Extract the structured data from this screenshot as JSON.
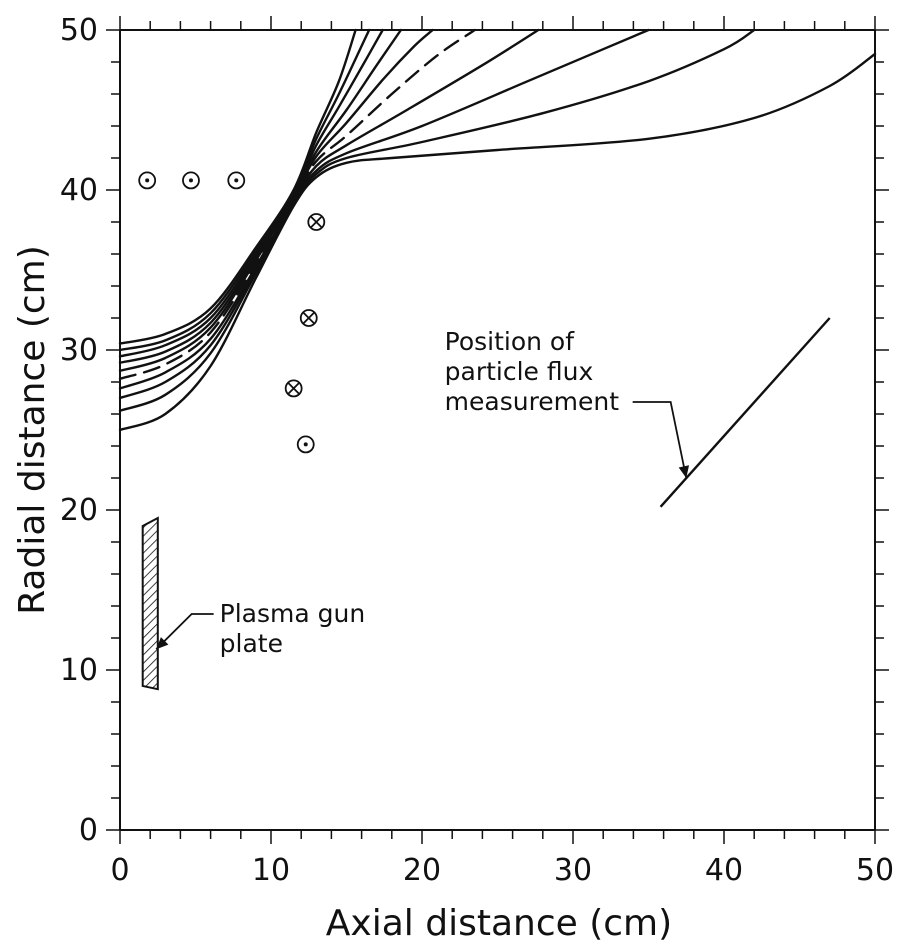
{
  "chart_data": {
    "type": "line",
    "xlabel": "Axial distance (cm)",
    "ylabel": "Radial distance (cm)",
    "xlim": [
      0,
      50
    ],
    "ylim": [
      0,
      50
    ],
    "xticks": [
      0,
      10,
      20,
      30,
      40,
      50
    ],
    "yticks": [
      0,
      10,
      20,
      30,
      40,
      50
    ],
    "grid": false,
    "line_color": "#111111",
    "series": [
      {
        "style": "solid",
        "points": [
          [
            0,
            25.0
          ],
          [
            3,
            26.0
          ],
          [
            6,
            29.0
          ],
          [
            9,
            34.5
          ],
          [
            11.5,
            39.0
          ],
          [
            13,
            40.8
          ],
          [
            15,
            41.7
          ],
          [
            18,
            42.0
          ],
          [
            25,
            42.5
          ],
          [
            35,
            43.2
          ],
          [
            42,
            44.5
          ],
          [
            47,
            46.5
          ],
          [
            50,
            48.5
          ]
        ]
      },
      {
        "style": "solid",
        "points": [
          [
            0,
            26.2
          ],
          [
            3,
            27.2
          ],
          [
            6,
            29.8
          ],
          [
            9,
            34.8
          ],
          [
            11.5,
            39.2
          ],
          [
            13,
            41.0
          ],
          [
            15,
            42.0
          ],
          [
            20,
            43.0
          ],
          [
            28,
            44.8
          ],
          [
            35,
            46.8
          ],
          [
            40,
            48.8
          ],
          [
            42,
            50
          ]
        ]
      },
      {
        "style": "solid",
        "points": [
          [
            0,
            27.0
          ],
          [
            3,
            28.0
          ],
          [
            6,
            30.3
          ],
          [
            9,
            35.0
          ],
          [
            11.5,
            39.3
          ],
          [
            13,
            41.2
          ],
          [
            15,
            42.3
          ],
          [
            20,
            44.0
          ],
          [
            27,
            46.8
          ],
          [
            32,
            48.8
          ],
          [
            35,
            50
          ]
        ]
      },
      {
        "style": "solid",
        "points": [
          [
            0,
            27.6
          ],
          [
            3,
            28.6
          ],
          [
            6,
            30.7
          ],
          [
            9,
            35.2
          ],
          [
            11.5,
            39.4
          ],
          [
            13,
            41.5
          ],
          [
            15,
            42.8
          ],
          [
            19,
            45.0
          ],
          [
            24,
            47.8
          ],
          [
            27.7,
            50
          ]
        ]
      },
      {
        "style": "dashed",
        "points": [
          [
            0,
            28.2
          ],
          [
            3,
            29.1
          ],
          [
            6,
            31.1
          ],
          [
            9,
            35.4
          ],
          [
            11.5,
            39.5
          ],
          [
            13,
            41.8
          ],
          [
            15,
            43.4
          ],
          [
            18,
            46.0
          ],
          [
            21,
            48.4
          ],
          [
            23.5,
            50
          ]
        ]
      },
      {
        "style": "solid",
        "points": [
          [
            0,
            28.7
          ],
          [
            3,
            29.5
          ],
          [
            6,
            31.4
          ],
          [
            9,
            35.6
          ],
          [
            11.5,
            39.6
          ],
          [
            13,
            42.1
          ],
          [
            15,
            44.2
          ],
          [
            17.5,
            47.0
          ],
          [
            19.5,
            49.0
          ],
          [
            20.7,
            50
          ]
        ]
      },
      {
        "style": "solid",
        "points": [
          [
            0,
            29.2
          ],
          [
            3,
            29.9
          ],
          [
            6,
            31.7
          ],
          [
            9,
            35.8
          ],
          [
            11.5,
            39.7
          ],
          [
            13,
            42.4
          ],
          [
            15,
            45.0
          ],
          [
            17,
            47.8
          ],
          [
            18.6,
            50
          ]
        ]
      },
      {
        "style": "solid",
        "points": [
          [
            0,
            29.6
          ],
          [
            3,
            30.3
          ],
          [
            6,
            32.0
          ],
          [
            9,
            36.0
          ],
          [
            11.5,
            39.8
          ],
          [
            13,
            42.8
          ],
          [
            14.5,
            45.2
          ],
          [
            16.2,
            48.0
          ],
          [
            17.4,
            50
          ]
        ]
      },
      {
        "style": "solid",
        "points": [
          [
            0,
            30.0
          ],
          [
            3,
            30.6
          ],
          [
            6,
            32.3
          ],
          [
            9,
            36.2
          ],
          [
            11.5,
            39.9
          ],
          [
            13,
            43.2
          ],
          [
            14.5,
            46.0
          ],
          [
            16.0,
            49.0
          ],
          [
            16.5,
            50
          ]
        ]
      },
      {
        "style": "solid",
        "points": [
          [
            0,
            30.4
          ],
          [
            3,
            31.0
          ],
          [
            6,
            32.6
          ],
          [
            9,
            36.4
          ],
          [
            11.5,
            40.0
          ],
          [
            13,
            43.6
          ],
          [
            14.5,
            46.8
          ],
          [
            15.6,
            50
          ]
        ]
      }
    ],
    "conductors": [
      {
        "x": 1.8,
        "y": 40.6,
        "type": "out"
      },
      {
        "x": 4.7,
        "y": 40.6,
        "type": "out"
      },
      {
        "x": 7.7,
        "y": 40.6,
        "type": "out"
      },
      {
        "x": 13.0,
        "y": 38.0,
        "type": "in"
      },
      {
        "x": 12.5,
        "y": 32.0,
        "type": "in"
      },
      {
        "x": 11.5,
        "y": 27.6,
        "type": "in"
      },
      {
        "x": 12.3,
        "y": 24.1,
        "type": "out"
      }
    ],
    "plate": {
      "corners": [
        [
          1.5,
          19.0
        ],
        [
          2.5,
          19.5
        ],
        [
          2.5,
          8.8
        ],
        [
          1.5,
          9.0
        ]
      ]
    },
    "flux_line": {
      "from": [
        35.8,
        20.2
      ],
      "to": [
        47.0,
        32.0
      ]
    },
    "annotations": [
      {
        "id": "plasma-gun-plate",
        "lines": [
          "Plasma gun",
          "plate"
        ],
        "text_at": [
          6.6,
          13.0
        ],
        "arrow_to": [
          2.4,
          11.3
        ]
      },
      {
        "id": "flux-position",
        "lines": [
          "Position of",
          "particle flux",
          "measurement"
        ],
        "text_at": [
          21.5,
          30.0
        ],
        "arrow_to": [
          37.5,
          22.0
        ]
      }
    ]
  }
}
